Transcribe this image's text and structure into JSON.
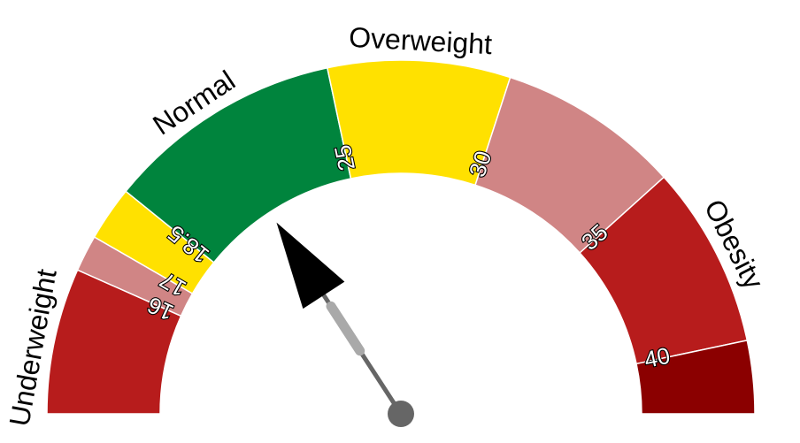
{
  "chart_data": {
    "type": "gauge",
    "title": "",
    "range": [
      12,
      42
    ],
    "value": 21.5,
    "bands": [
      {
        "from": 12,
        "to": 16,
        "color": "#b71c1c"
      },
      {
        "from": 16,
        "to": 17,
        "color": "#d08585"
      },
      {
        "from": 17,
        "to": 18.5,
        "color": "#ffe100"
      },
      {
        "from": 18.5,
        "to": 25,
        "color": "#00843d"
      },
      {
        "from": 25,
        "to": 30,
        "color": "#ffe100"
      },
      {
        "from": 30,
        "to": 35,
        "color": "#d08585"
      },
      {
        "from": 35,
        "to": 40,
        "color": "#b71c1c"
      },
      {
        "from": 40,
        "to": 42,
        "color": "#8b0000"
      }
    ],
    "ticks": [
      {
        "value": 16,
        "label": "16"
      },
      {
        "value": 17,
        "label": "17"
      },
      {
        "value": 18.5,
        "label": "18.5"
      },
      {
        "value": 25,
        "label": "25"
      },
      {
        "value": 30,
        "label": "30"
      },
      {
        "value": 35,
        "label": "35"
      },
      {
        "value": 40,
        "label": "40"
      }
    ],
    "categories": [
      {
        "value": 13.7,
        "label": "Underweight"
      },
      {
        "value": 21.4,
        "label": "Normal"
      },
      {
        "value": 27.5,
        "label": "Overweight"
      },
      {
        "value": 37.5,
        "label": "Obesity"
      }
    ]
  }
}
